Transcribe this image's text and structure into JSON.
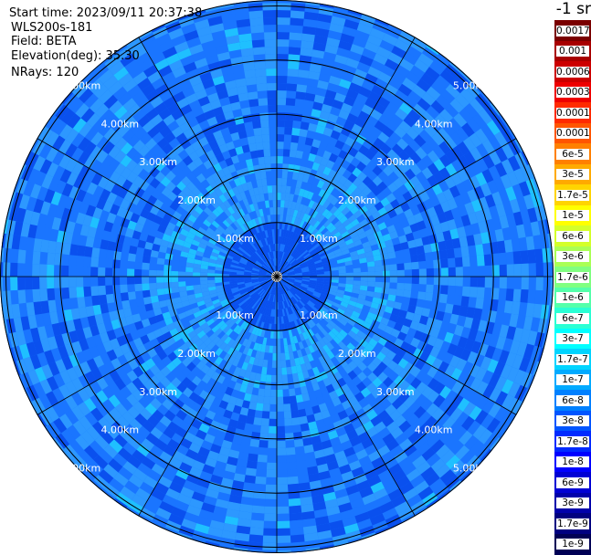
{
  "header": {
    "start_time": "Start time: 2023/09/11 20:37:38",
    "instrument": "WLS200s-181",
    "field": "Field: BETA",
    "elevation": "Elevation(deg): 35.30",
    "nrays": "NRays: 120"
  },
  "colorbar": {
    "unit_label": "-1 sr",
    "levels": [
      {
        "label": "0.0017",
        "color": "#7a0000"
      },
      {
        "label": "0.001",
        "color": "#a80000"
      },
      {
        "label": "0.0006",
        "color": "#cc0000"
      },
      {
        "label": "0.0003",
        "color": "#ee0000"
      },
      {
        "label": "0.00017",
        "color": "#ff2a00"
      },
      {
        "label": "0.0001",
        "color": "#ff5500"
      },
      {
        "label": "6e-5",
        "color": "#ff8000"
      },
      {
        "label": "3e-5",
        "color": "#ffaa00"
      },
      {
        "label": "1.7e-5",
        "color": "#ffd400"
      },
      {
        "label": "1e-5",
        "color": "#ffff00"
      },
      {
        "label": "6e-6",
        "color": "#d4ff2a"
      },
      {
        "label": "3e-6",
        "color": "#aaff55"
      },
      {
        "label": "1.7e-6",
        "color": "#80ff80"
      },
      {
        "label": "1e-6",
        "color": "#55ffaa"
      },
      {
        "label": "6e-7",
        "color": "#2affd4"
      },
      {
        "label": "3e-7",
        "color": "#00ffff"
      },
      {
        "label": "1.7e-7",
        "color": "#00d4ff"
      },
      {
        "label": "1e-7",
        "color": "#00aaff"
      },
      {
        "label": "6e-8",
        "color": "#0080ff"
      },
      {
        "label": "3e-8",
        "color": "#0055ff"
      },
      {
        "label": "1.7e-8",
        "color": "#002aff"
      },
      {
        "label": "1e-8",
        "color": "#0000ff"
      },
      {
        "label": "6e-9",
        "color": "#0000d4"
      },
      {
        "label": "3e-9",
        "color": "#0000aa"
      },
      {
        "label": "1.7e-9",
        "color": "#000080"
      },
      {
        "label": "1e-9",
        "color": "#000055"
      }
    ]
  },
  "plot": {
    "range_rings": [
      "1.00km",
      "2.00km",
      "3.00km",
      "4.00km",
      "5.00km"
    ],
    "spokes": 12,
    "colors": {
      "field_main": "#1a75ff",
      "field_dark": "#0a50ee",
      "field_light": "#2d98ff",
      "field_cyan": "#1fc0ff",
      "grid": "#000000",
      "label": "#ffffff"
    }
  }
}
